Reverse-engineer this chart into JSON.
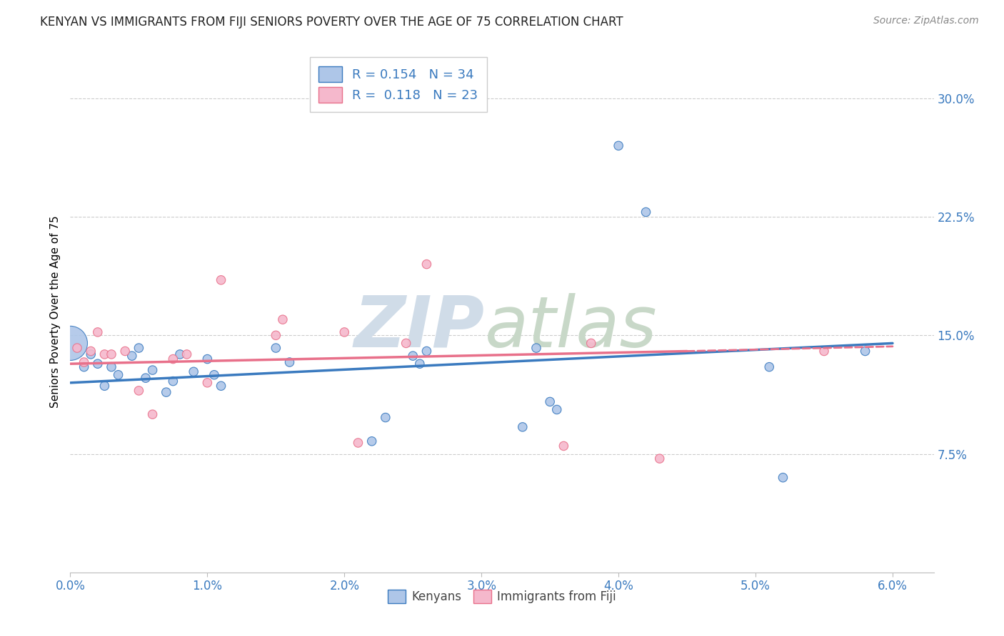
{
  "title": "KENYAN VS IMMIGRANTS FROM FIJI SENIORS POVERTY OVER THE AGE OF 75 CORRELATION CHART",
  "source": "Source: ZipAtlas.com",
  "xlabel_ticks": [
    "0.0%",
    "1.0%",
    "2.0%",
    "3.0%",
    "4.0%",
    "5.0%",
    "6.0%"
  ],
  "xlabel_vals": [
    0.0,
    1.0,
    2.0,
    3.0,
    4.0,
    5.0,
    6.0
  ],
  "ylabel": "Seniors Poverty Over the Age of 75",
  "ylabel_ticks": [
    "7.5%",
    "15.0%",
    "22.5%",
    "30.0%"
  ],
  "ylabel_vals": [
    7.5,
    15.0,
    22.5,
    30.0
  ],
  "xlim": [
    0.0,
    6.3
  ],
  "ylim": [
    0.0,
    33.0
  ],
  "kenyan_R": 0.154,
  "kenyan_N": 34,
  "fiji_R": 0.118,
  "fiji_N": 23,
  "kenyan_color": "#aec6e8",
  "fiji_color": "#f5b8cc",
  "kenyan_line_color": "#3a7abf",
  "fiji_line_color": "#e8708a",
  "legend_label_kenyan": "Kenyans",
  "legend_label_fiji": "Immigrants from Fiji",
  "kenyan_scatter_x": [
    0.0,
    0.1,
    0.15,
    0.2,
    0.25,
    0.3,
    0.35,
    0.45,
    0.5,
    0.55,
    0.6,
    0.7,
    0.75,
    0.8,
    0.9,
    1.0,
    1.05,
    1.1,
    1.5,
    1.6,
    2.2,
    2.3,
    2.5,
    2.55,
    2.6,
    3.3,
    3.4,
    3.5,
    3.55,
    4.0,
    4.2,
    5.1,
    5.2,
    5.8
  ],
  "kenyan_scatter_y": [
    14.5,
    13.0,
    13.8,
    13.2,
    11.8,
    13.0,
    12.5,
    13.7,
    14.2,
    12.3,
    12.8,
    11.4,
    12.1,
    13.8,
    12.7,
    13.5,
    12.5,
    11.8,
    14.2,
    13.3,
    8.3,
    9.8,
    13.7,
    13.2,
    14.0,
    9.2,
    14.2,
    10.8,
    10.3,
    27.0,
    22.8,
    13.0,
    6.0,
    14.0
  ],
  "kenyan_scatter_size": [
    1200,
    80,
    80,
    80,
    80,
    80,
    80,
    80,
    80,
    80,
    80,
    80,
    80,
    80,
    80,
    80,
    80,
    80,
    80,
    80,
    80,
    80,
    80,
    80,
    80,
    80,
    80,
    80,
    80,
    80,
    80,
    80,
    80,
    80
  ],
  "fiji_scatter_x": [
    0.05,
    0.1,
    0.15,
    0.2,
    0.25,
    0.3,
    0.4,
    0.5,
    0.6,
    0.75,
    0.85,
    1.0,
    1.1,
    1.5,
    1.55,
    2.0,
    2.1,
    2.45,
    2.6,
    3.6,
    3.8,
    4.3,
    5.5
  ],
  "fiji_scatter_y": [
    14.2,
    13.3,
    14.0,
    15.2,
    13.8,
    13.8,
    14.0,
    11.5,
    10.0,
    13.5,
    13.8,
    12.0,
    18.5,
    15.0,
    16.0,
    15.2,
    8.2,
    14.5,
    19.5,
    8.0,
    14.5,
    7.2,
    14.0
  ],
  "fiji_scatter_size": [
    80,
    80,
    80,
    80,
    80,
    80,
    80,
    80,
    80,
    80,
    80,
    80,
    80,
    80,
    80,
    80,
    80,
    80,
    80,
    80,
    80,
    80,
    80
  ],
  "kenyan_line_x0": 0.0,
  "kenyan_line_y0": 12.0,
  "kenyan_line_x1": 6.0,
  "kenyan_line_y1": 14.5,
  "fiji_line_x0": 0.0,
  "fiji_line_y0": 13.2,
  "fiji_line_x1": 4.5,
  "fiji_line_y1": 14.0,
  "fiji_line_dash_x0": 4.5,
  "fiji_line_dash_y0": 14.0,
  "fiji_line_dash_x1": 6.0,
  "fiji_line_dash_y1": 14.3,
  "background_color": "#ffffff",
  "grid_color": "#cccccc",
  "watermark_zip": "ZIP",
  "watermark_atlas": "atlas",
  "watermark_color_zip": "#d0dce8",
  "watermark_color_atlas": "#c8d8c8",
  "label_color": "#3a7abf",
  "title_fontsize": 12,
  "axis_label_fontsize": 11
}
